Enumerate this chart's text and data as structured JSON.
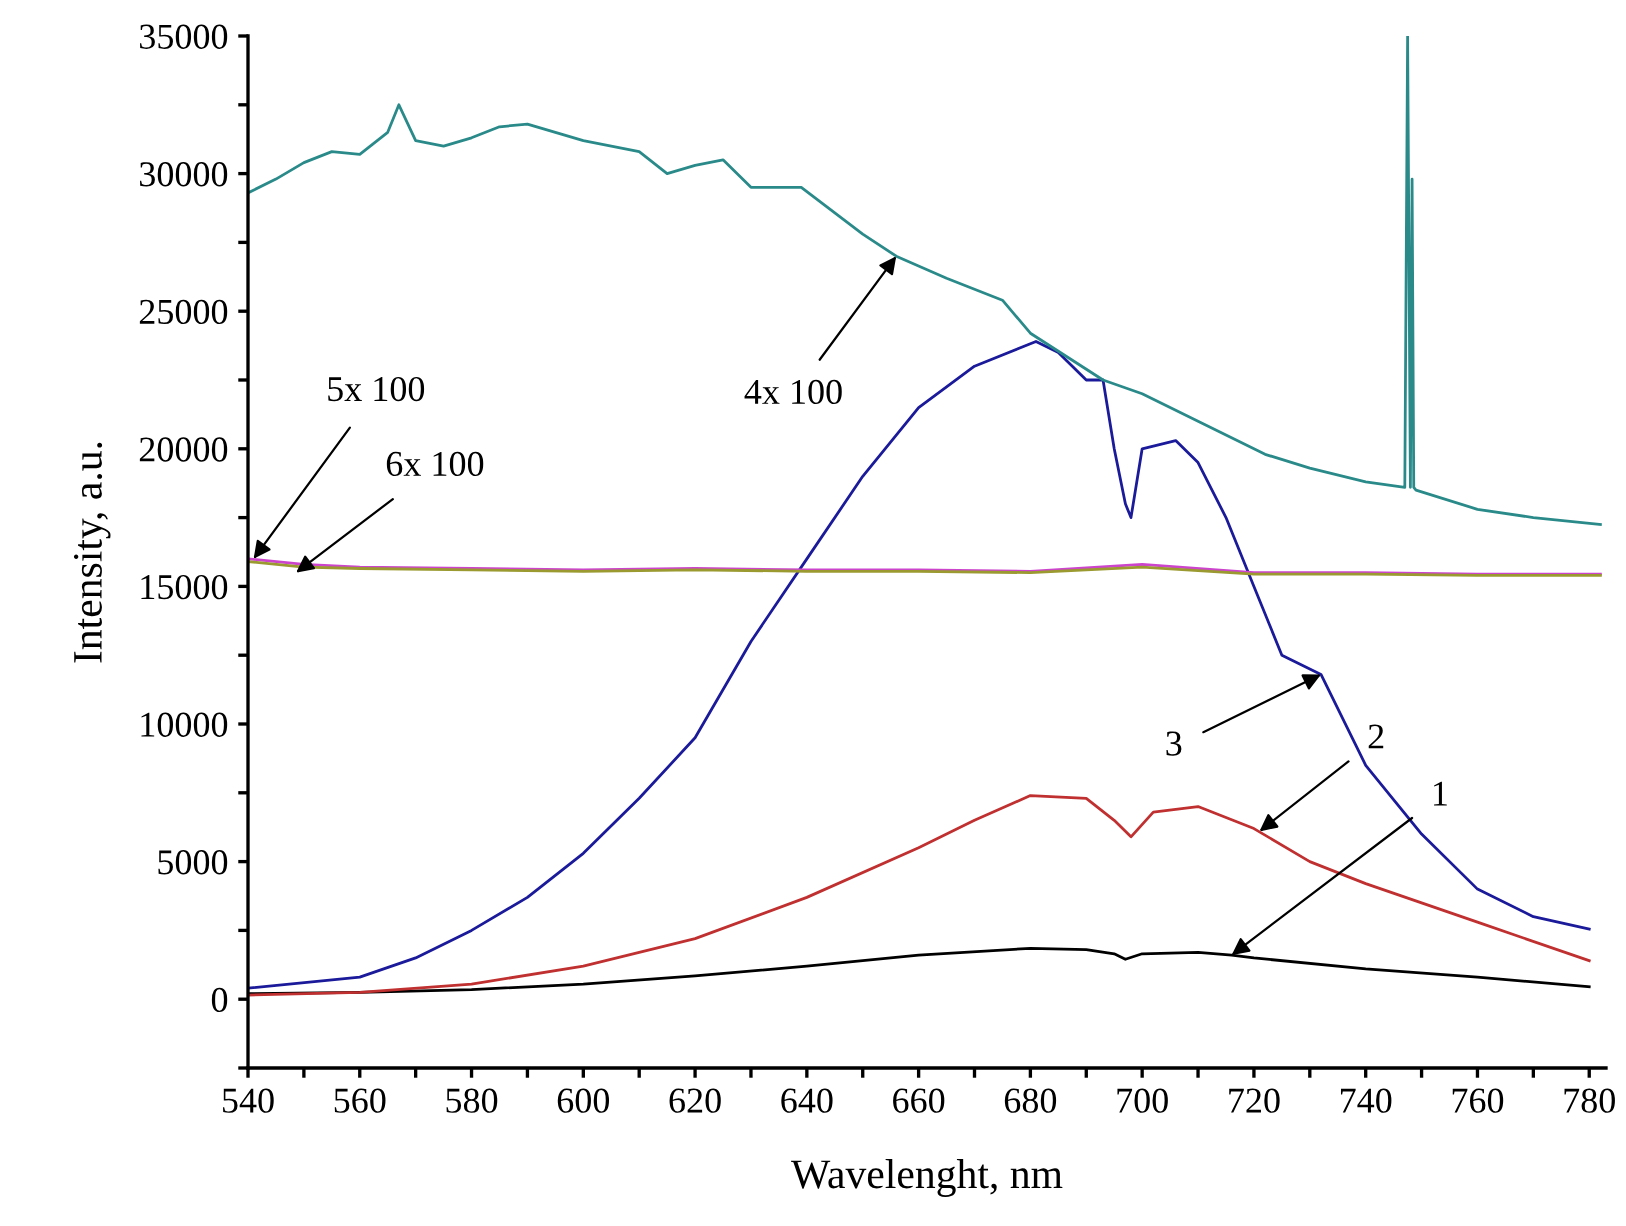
{
  "chart_data": {
    "type": "line",
    "xlabel": "Wavelenght, nm",
    "ylabel": "Intensity, a.u.",
    "xlim": [
      540,
      783
    ],
    "ylim": [
      -2500,
      35000
    ],
    "xticks": [
      540,
      {
        "value": 550,
        "label": null
      },
      560,
      {
        "value": 570,
        "label": null
      },
      580,
      {
        "value": 590,
        "label": null
      },
      600,
      {
        "value": 610,
        "label": null
      },
      620,
      {
        "value": 630,
        "label": null
      },
      640,
      {
        "value": 650,
        "label": null
      },
      660,
      {
        "value": 670,
        "label": null
      },
      680,
      {
        "value": 690,
        "label": null
      },
      700,
      {
        "value": 710,
        "label": null
      },
      720,
      {
        "value": 730,
        "label": null
      },
      740,
      {
        "value": 750,
        "label": null
      },
      760,
      {
        "value": 770,
        "label": null
      },
      780
    ],
    "yticks": [
      {
        "value": -2500,
        "label": null
      },
      0,
      {
        "value": 2500,
        "label": null
      },
      5000,
      {
        "value": 7500,
        "label": null
      },
      10000,
      {
        "value": 12500,
        "label": null
      },
      15000,
      {
        "value": 17500,
        "label": null
      },
      20000,
      {
        "value": 22500,
        "label": null
      },
      25000,
      {
        "value": 27500,
        "label": null
      },
      30000,
      {
        "value": 32500,
        "label": null
      },
      35000
    ],
    "grid": false,
    "legend": false,
    "marker": "none",
    "line_style": "solid",
    "series": [
      {
        "color": "#000000",
        "x": [
          540,
          560,
          580,
          600,
          620,
          640,
          660,
          680,
          690,
          695,
          697,
          700,
          710,
          716,
          720,
          740,
          760,
          780
        ],
        "values": [
          200,
          250,
          350,
          550,
          850,
          1200,
          1600,
          1850,
          1800,
          1650,
          1450,
          1650,
          1700,
          1600,
          1500,
          1100,
          800,
          450
        ]
      },
      {
        "color": "#c03030",
        "x": [
          540,
          560,
          580,
          600,
          620,
          640,
          660,
          670,
          680,
          690,
          695,
          698,
          702,
          710,
          720,
          730,
          740,
          760,
          780
        ],
        "values": [
          150,
          250,
          550,
          1200,
          2200,
          3700,
          5500,
          6500,
          7400,
          7300,
          6500,
          5900,
          6800,
          7000,
          6200,
          5000,
          4200,
          2800,
          1400
        ]
      },
      {
        "color": "#1a1a9a",
        "x": [
          540,
          560,
          570,
          580,
          590,
          600,
          610,
          620,
          630,
          640,
          650,
          660,
          670,
          681,
          685,
          690,
          693,
          695,
          697,
          698,
          700,
          706,
          710,
          715,
          720,
          725,
          732,
          740,
          750,
          760,
          770,
          780
        ],
        "values": [
          400,
          800,
          1500,
          2500,
          3700,
          5300,
          7300,
          9500,
          13000,
          16000,
          19000,
          21500,
          23000,
          23900,
          23500,
          22500,
          22500,
          20000,
          18000,
          17500,
          20000,
          20300,
          19500,
          17500,
          15000,
          12500,
          11800,
          8500,
          6000,
          4000,
          3000,
          2550
        ]
      },
      {
        "color": "#2a8a8a",
        "x": [
          540,
          545,
          550,
          555,
          560,
          565,
          567,
          570,
          575,
          580,
          585,
          590,
          595,
          600,
          610,
          615,
          620,
          625,
          630,
          639,
          650,
          656,
          665,
          675,
          680,
          693,
          700,
          710,
          722,
          730,
          740,
          747,
          747.5,
          748,
          748.3,
          748.6,
          749,
          760,
          770,
          782
        ],
        "values": [
          29300,
          29800,
          30400,
          30800,
          30700,
          31500,
          32500,
          31200,
          31000,
          31300,
          31700,
          31800,
          31500,
          31200,
          30800,
          30000,
          30300,
          30500,
          29500,
          29500,
          27800,
          27000,
          26200,
          25400,
          24200,
          22500,
          22000,
          21000,
          19800,
          19300,
          18800,
          18600,
          35000,
          18600,
          29800,
          18600,
          18500,
          17800,
          17500,
          17250
        ]
      },
      {
        "color": "#cc44cc",
        "x": [
          540,
          550,
          560,
          580,
          600,
          620,
          640,
          660,
          680,
          700,
          720,
          740,
          760,
          782
        ],
        "values": [
          16000,
          15800,
          15700,
          15650,
          15600,
          15650,
          15600,
          15600,
          15550,
          15800,
          15500,
          15500,
          15450,
          15450
        ]
      },
      {
        "color": "#9a9a30",
        "x": [
          540,
          550,
          560,
          580,
          600,
          620,
          640,
          660,
          680,
          700,
          720,
          740,
          760,
          782
        ],
        "values": [
          15900,
          15700,
          15650,
          15600,
          15550,
          15600,
          15550,
          15550,
          15500,
          15700,
          15450,
          15450,
          15400,
          15400
        ]
      }
    ],
    "annotations": [
      {
        "text": "1",
        "x": 716,
        "y": 1600
      },
      {
        "text": "2",
        "x": 721,
        "y": 6100
      },
      {
        "text": "3",
        "x": 732,
        "y": 11800
      },
      {
        "text": "4x 100",
        "x": 656,
        "y": 27000
      },
      {
        "text": "5x 100",
        "x": 541,
        "y": 16000
      },
      {
        "text": "6x 100",
        "x": 548.6,
        "y": 15500
      }
    ]
  }
}
